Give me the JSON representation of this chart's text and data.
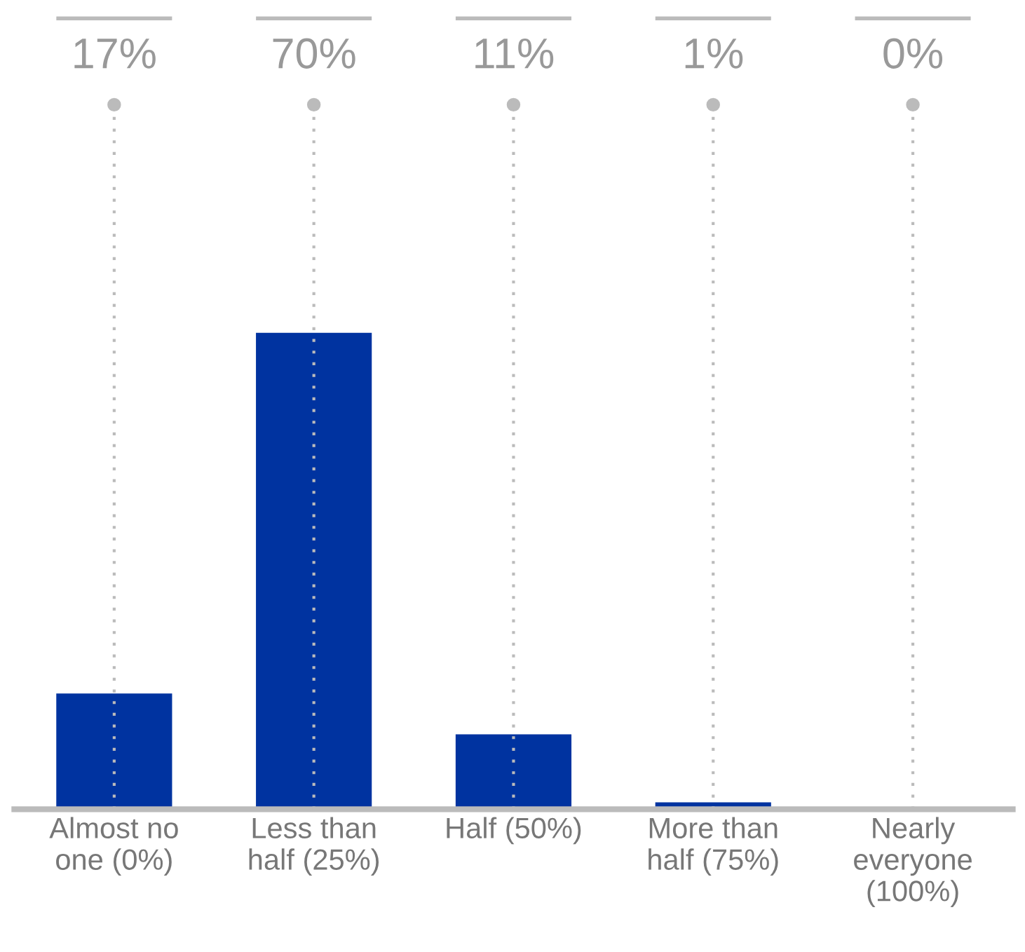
{
  "chart_data": {
    "type": "bar",
    "categories": [
      "Almost no\none (0%)",
      "Less than\nhalf (25%)",
      "Half (50%)",
      "More than\nhalf (75%)",
      "Nearly\neveryone\n(100%)"
    ],
    "values": [
      17,
      70,
      11,
      1,
      0
    ],
    "value_labels": [
      "17%",
      "70%",
      "11%",
      "1%",
      "0%"
    ],
    "color": "#0033a0",
    "grid": "x"
  }
}
